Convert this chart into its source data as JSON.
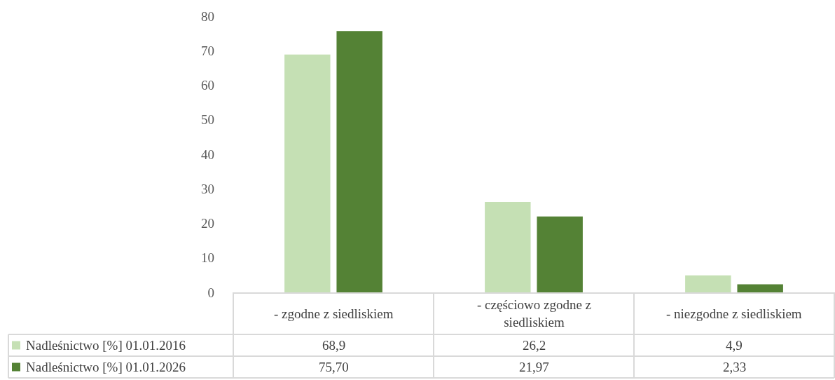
{
  "chart_data": {
    "type": "bar",
    "categories": [
      "- zgodne z siedliskiem",
      "- częściowo zgodne z siedliskiem",
      "- niezgodne z siedliskiem"
    ],
    "series": [
      {
        "name": "Nadleśnictwo [%] 01.01.2016",
        "color": "#c5e0b4",
        "values": [
          68.9,
          26.2,
          4.9
        ],
        "value_labels": [
          "68,9",
          "26,2",
          "4,9"
        ]
      },
      {
        "name": "Nadleśnictwo [%] 01.01.2026",
        "color": "#548235",
        "values": [
          75.7,
          21.97,
          2.33
        ],
        "value_labels": [
          "75,70",
          "21,97",
          "2,33"
        ]
      }
    ],
    "ylim": [
      0,
      80
    ],
    "yticks": [
      0,
      10,
      20,
      30,
      40,
      50,
      60,
      70,
      80
    ],
    "grid": false,
    "legend": "bottom"
  }
}
